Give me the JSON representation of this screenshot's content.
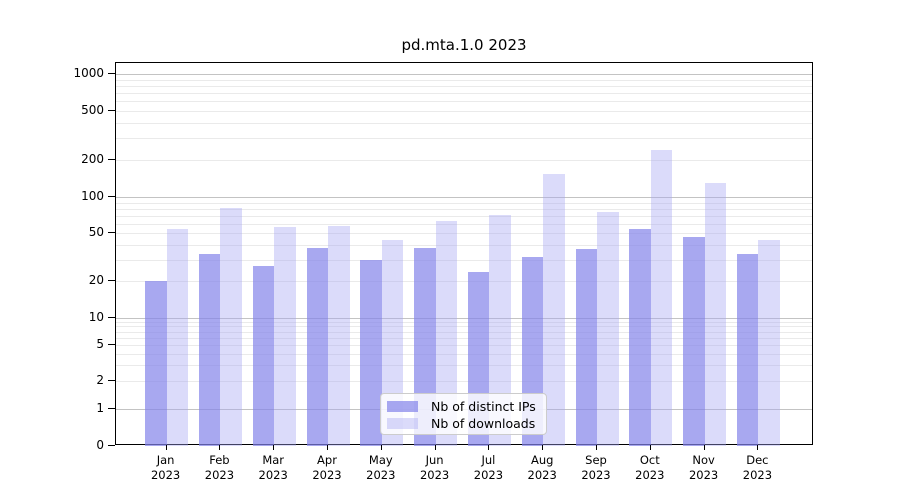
{
  "title": "pd.mta.1.0 2023",
  "chart_data": {
    "type": "bar",
    "title": "pd.mta.1.0 2023",
    "xlabel": "",
    "ylabel": "",
    "yscale": "symlog",
    "ylim": [
      0,
      1300
    ],
    "grid": true,
    "legend_position": "lower center",
    "categories": [
      "Jan",
      "Feb",
      "Mar",
      "Apr",
      "May",
      "Jun",
      "Jul",
      "Aug",
      "Sep",
      "Oct",
      "Nov",
      "Dec"
    ],
    "year_label": "2023",
    "yticks": [
      0,
      1,
      2,
      5,
      10,
      20,
      50,
      100,
      200,
      500,
      1000
    ],
    "series": [
      {
        "name": "Nb of distinct IPs",
        "color": "rgba(131,131,234,0.70)",
        "color_hex_on_white": "#a8a8f0",
        "values": [
          20,
          34,
          27,
          38,
          30,
          38,
          24,
          32,
          37,
          55,
          47,
          34
        ]
      },
      {
        "name": "Nb of downloads",
        "color": "rgba(165,165,243,0.40)",
        "color_hex_on_white": "#dbdbfa",
        "values": [
          54,
          81,
          57,
          58,
          44,
          63,
          71,
          155,
          75,
          240,
          130,
          44
        ]
      }
    ]
  }
}
